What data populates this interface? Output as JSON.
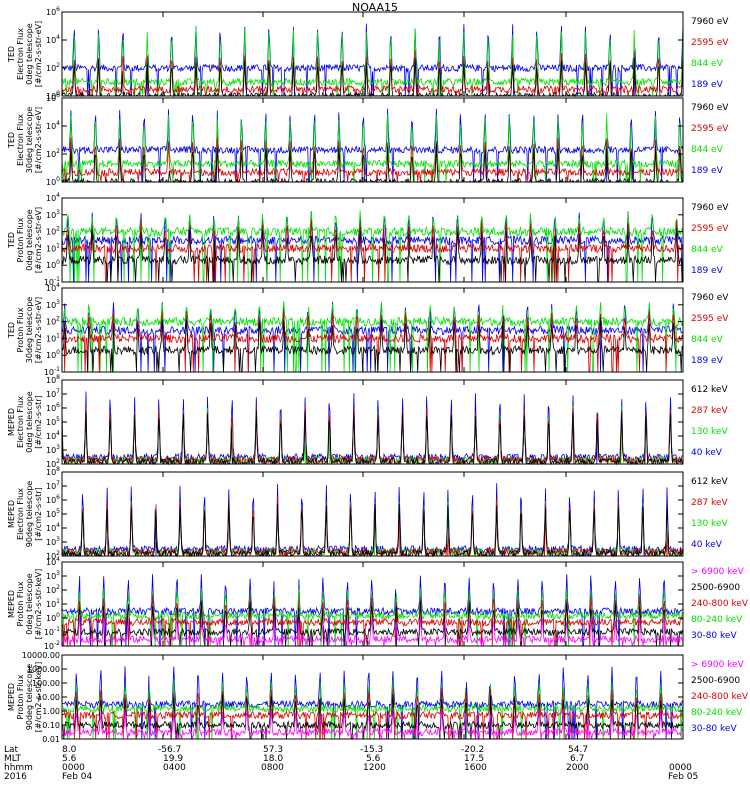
{
  "title": "NOAA15",
  "colors": {
    "black": "#000000",
    "red": "#dd0000",
    "green": "#00e000",
    "blue": "#0000ee",
    "magenta": "#ff00ff"
  },
  "chart_data": [
    {
      "type": "line",
      "ylabel": [
        "TED",
        "Electron Flux",
        "0deg telescope",
        "[#/cm2-s-str-eV]"
      ],
      "ylog": true,
      "ylim": [
        1,
        1000000
      ],
      "yticks": [
        "10^0",
        "10^2",
        "10^4",
        "10^6"
      ],
      "legend": [
        {
          "label": "7960 eV",
          "color": "black"
        },
        {
          "label": "2595 eV",
          "color": "red"
        },
        {
          "label": "844 eV",
          "color": "green"
        },
        {
          "label": "189 eV",
          "color": "blue"
        }
      ],
      "series": [
        {
          "legend_index": 3,
          "base": 100,
          "spike": 100000
        },
        {
          "legend_index": 2,
          "base": 10,
          "spike": 50000
        },
        {
          "legend_index": 1,
          "base": 3,
          "spike": 1000
        },
        {
          "legend_index": 0,
          "base": 1,
          "spike": 300
        }
      ]
    },
    {
      "type": "line",
      "ylabel": [
        "TED",
        "Electron Flux",
        "30deg telescope",
        "[#/cm2-s-str-eV]"
      ],
      "ylog": true,
      "ylim": [
        1,
        1000000
      ],
      "yticks": [
        "10^0",
        "10^2",
        "10^4",
        "10^6"
      ],
      "legend": [
        {
          "label": "7960 eV",
          "color": "black"
        },
        {
          "label": "2595 eV",
          "color": "red"
        },
        {
          "label": "844 eV",
          "color": "green"
        },
        {
          "label": "189 eV",
          "color": "blue"
        }
      ],
      "series": [
        {
          "legend_index": 3,
          "base": 200,
          "spike": 100000
        },
        {
          "legend_index": 2,
          "base": 20,
          "spike": 50000
        },
        {
          "legend_index": 1,
          "base": 5,
          "spike": 1000
        },
        {
          "legend_index": 0,
          "base": 1,
          "spike": 300
        }
      ]
    },
    {
      "type": "line",
      "ylabel": [
        "TED",
        "Proton Flux",
        "0deg telescope",
        "[#/cm2-s-str-eV]"
      ],
      "ylog": true,
      "ylim": [
        0.1,
        10000
      ],
      "yticks": [
        "10^-1",
        "10^0",
        "10^1",
        "10^2",
        "10^3",
        "10^4"
      ],
      "legend": [
        {
          "label": "7960 eV",
          "color": "black"
        },
        {
          "label": "2595 eV",
          "color": "red"
        },
        {
          "label": "844 eV",
          "color": "green"
        },
        {
          "label": "189 eV",
          "color": "blue"
        }
      ],
      "series": [
        {
          "legend_index": 3,
          "base": 30,
          "spike": 1000
        },
        {
          "legend_index": 2,
          "base": 100,
          "spike": 1000
        },
        {
          "legend_index": 1,
          "base": 10,
          "spike": 300
        },
        {
          "legend_index": 0,
          "base": 2,
          "spike": 100
        }
      ]
    },
    {
      "type": "line",
      "ylabel": [
        "TED",
        "Proton Flux",
        "30deg telescope",
        "[#/cm2-s-str-eV]"
      ],
      "ylog": true,
      "ylim": [
        0.1,
        10000
      ],
      "yticks": [
        "10^-1",
        "10^0",
        "10^1",
        "10^2",
        "10^3",
        "10^4"
      ],
      "legend": [
        {
          "label": "7960 eV",
          "color": "black"
        },
        {
          "label": "2595 eV",
          "color": "red"
        },
        {
          "label": "844 eV",
          "color": "green"
        },
        {
          "label": "189 eV",
          "color": "blue"
        }
      ],
      "series": [
        {
          "legend_index": 3,
          "base": 30,
          "spike": 1000
        },
        {
          "legend_index": 2,
          "base": 100,
          "spike": 1000
        },
        {
          "legend_index": 1,
          "base": 10,
          "spike": 300
        },
        {
          "legend_index": 0,
          "base": 2,
          "spike": 100
        }
      ]
    },
    {
      "type": "line",
      "ylabel": [
        "MEPED",
        "Electron Flux",
        "0deg telescope",
        "[#/cm2-s-str]"
      ],
      "ylog": true,
      "ylim": [
        100,
        100000000
      ],
      "yticks": [
        "10^2",
        "10^3",
        "10^4",
        "10^5",
        "10^6",
        "10^7",
        "10^8"
      ],
      "legend": [
        {
          "label": "612 keV",
          "color": "black"
        },
        {
          "label": "287 keV",
          "color": "red"
        },
        {
          "label": "130 keV",
          "color": "green"
        },
        {
          "label": "40 keV",
          "color": "blue"
        }
      ],
      "series": [
        {
          "legend_index": 3,
          "base": 300,
          "spike": 10000000
        },
        {
          "legend_index": 2,
          "base": 200,
          "spike": 1000000
        },
        {
          "legend_index": 1,
          "base": 200,
          "spike": 1000000
        },
        {
          "legend_index": 0,
          "base": 150,
          "spike": 500000
        }
      ]
    },
    {
      "type": "line",
      "ylabel": [
        "MEPED",
        "Electron Flux",
        "90deg telescope",
        "[#/cm2-s-str]"
      ],
      "ylog": true,
      "ylim": [
        100,
        100000000
      ],
      "yticks": [
        "10^2",
        "10^3",
        "10^4",
        "10^5",
        "10^6",
        "10^7",
        "10^8"
      ],
      "legend": [
        {
          "label": "612 keV",
          "color": "black"
        },
        {
          "label": "287 keV",
          "color": "red"
        },
        {
          "label": "130 keV",
          "color": "green"
        },
        {
          "label": "40 keV",
          "color": "blue"
        }
      ],
      "series": [
        {
          "legend_index": 3,
          "base": 300,
          "spike": 10000000
        },
        {
          "legend_index": 2,
          "base": 200,
          "spike": 1000000
        },
        {
          "legend_index": 1,
          "base": 200,
          "spike": 1000000
        },
        {
          "legend_index": 0,
          "base": 150,
          "spike": 500000
        }
      ]
    },
    {
      "type": "line",
      "ylabel": [
        "MEPED",
        "Proton Flux",
        "0deg telescope",
        "[#/cm2-s-str-keV]"
      ],
      "ylog": true,
      "ylim": [
        0.01,
        10000
      ],
      "yticks": [
        "10^-2",
        "10^-1",
        "10^0",
        "10^1",
        "10^2",
        "10^3",
        "10^4"
      ],
      "legend": [
        {
          "label": "> 6900 keV",
          "color": "magenta"
        },
        {
          "label": "2500-6900",
          "color": "black"
        },
        {
          "label": "240-800 keV",
          "color": "red"
        },
        {
          "label": "80-240 keV",
          "color": "green"
        },
        {
          "label": "30-80 keV",
          "color": "blue"
        }
      ],
      "series": [
        {
          "legend_index": 4,
          "base": 3,
          "spike": 1000
        },
        {
          "legend_index": 3,
          "base": 1.5,
          "spike": 100
        },
        {
          "legend_index": 2,
          "base": 0.5,
          "spike": 30
        },
        {
          "legend_index": 1,
          "base": 0.1,
          "spike": 10
        },
        {
          "legend_index": 0,
          "base": 0.03,
          "spike": 1
        }
      ]
    },
    {
      "type": "line",
      "ylabel": [
        "MEPED",
        "Proton Flux",
        "90deg telescope",
        "[#/cm2-s-str-keV]"
      ],
      "ylog": true,
      "ylim": [
        0.01,
        10000
      ],
      "yticks": [
        "0.01",
        "0.10",
        "1.00",
        "10.00",
        "100.00",
        "1000.00",
        "10000.00"
      ],
      "legend": [
        {
          "label": "> 6900 keV",
          "color": "magenta"
        },
        {
          "label": "2500-6900",
          "color": "black"
        },
        {
          "label": "240-800 keV",
          "color": "red"
        },
        {
          "label": "80-240 keV",
          "color": "green"
        },
        {
          "label": "30-80 keV",
          "color": "blue"
        }
      ],
      "series": [
        {
          "legend_index": 4,
          "base": 3,
          "spike": 1000
        },
        {
          "legend_index": 3,
          "base": 1.5,
          "spike": 100
        },
        {
          "legend_index": 2,
          "base": 0.5,
          "spike": 30
        },
        {
          "legend_index": 1,
          "base": 0.1,
          "spike": 10
        },
        {
          "legend_index": 0,
          "base": 0.03,
          "spike": 1
        }
      ]
    }
  ],
  "x_axis": {
    "row_labels": [
      "Lat",
      "MLT",
      "hhmm",
      "2016"
    ],
    "ticks": [
      {
        "lat": "8.0",
        "mlt": "5.6",
        "hhmm": "0000",
        "date": "Feb 04"
      },
      {
        "lat": "-56.7",
        "mlt": "19.9",
        "hhmm": "0400",
        "date": ""
      },
      {
        "lat": "57.3",
        "mlt": "18.0",
        "hhmm": "0800",
        "date": ""
      },
      {
        "lat": "-15.3",
        "mlt": "5.6",
        "hhmm": "1200",
        "date": ""
      },
      {
        "lat": "-20.2",
        "mlt": "17.5",
        "hhmm": "1600",
        "date": ""
      },
      {
        "lat": "54.7",
        "mlt": "6.7",
        "hhmm": "2000",
        "date": ""
      },
      {
        "lat": "",
        "mlt": "",
        "hhmm": "0000",
        "date": "Feb 05"
      }
    ]
  }
}
